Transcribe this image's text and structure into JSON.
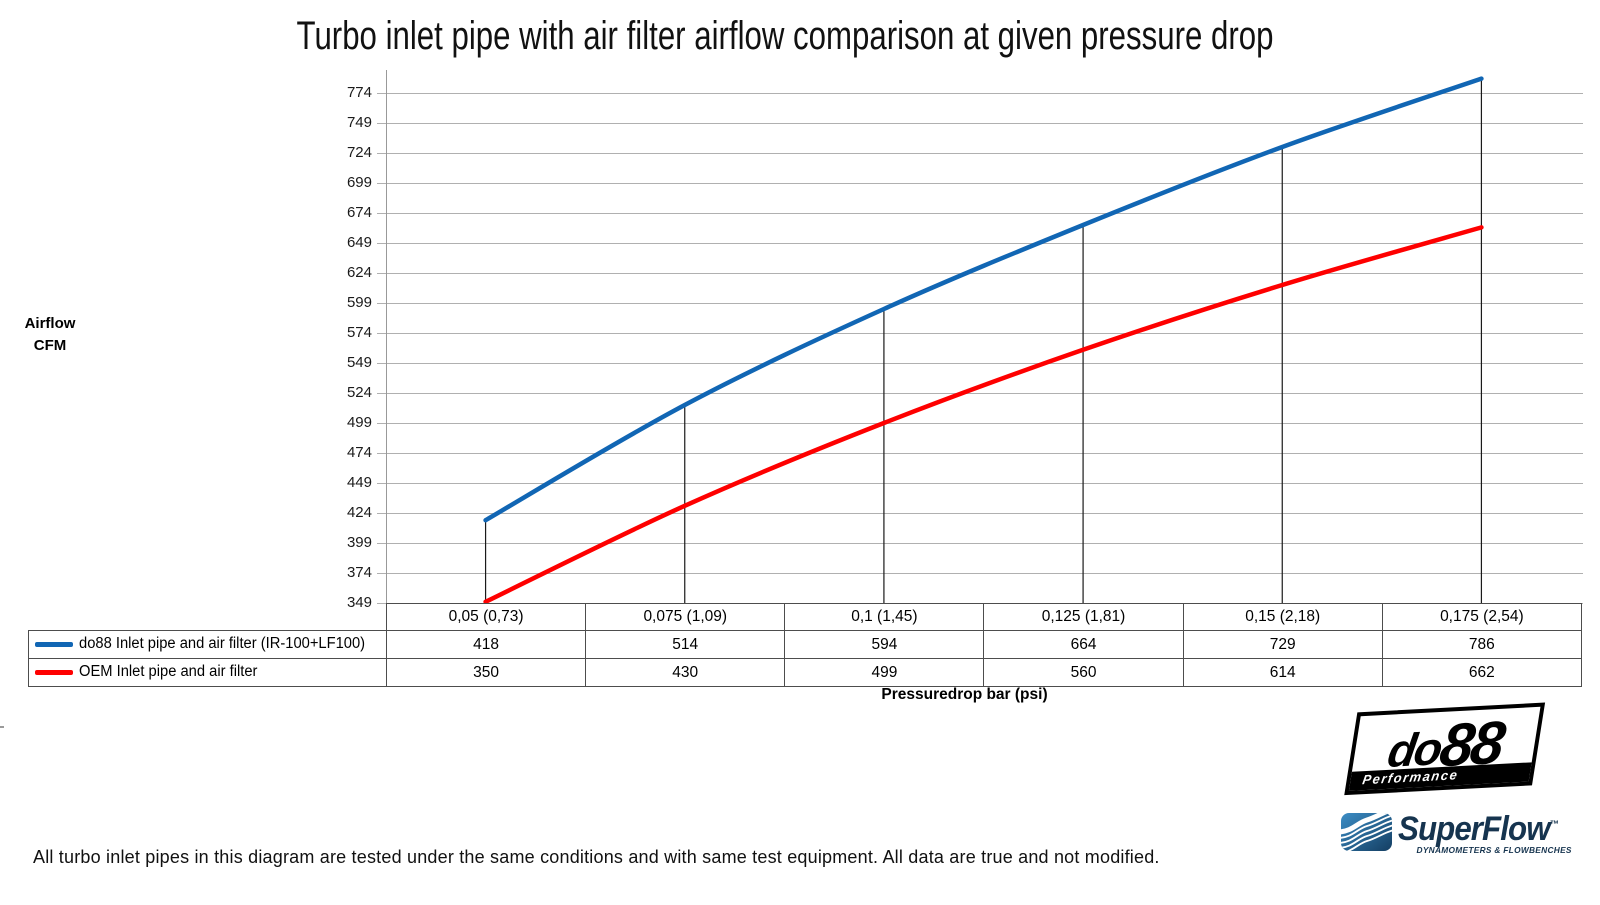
{
  "title": "Turbo inlet pipe with air filter airflow comparison at given pressure drop",
  "y_axis": {
    "title_line1": "Airflow",
    "title_line2": "CFM",
    "ticks_top_down": [
      774,
      749,
      724,
      699,
      674,
      649,
      624,
      599,
      574,
      549,
      524,
      499,
      474,
      449,
      424,
      399,
      374,
      349
    ]
  },
  "x_axis": {
    "title": "Pressuredrop bar (psi)"
  },
  "chart_data": {
    "type": "line",
    "title": "Turbo inlet pipe with air filter airflow comparison at given pressure drop",
    "xlabel": "Pressuredrop bar (psi)",
    "ylabel": "Airflow CFM",
    "categories": [
      "0,05 (0,73)",
      "0,075 (1,09)",
      "0,1 (1,45)",
      "0,125 (1,81)",
      "0,15 (2,18)",
      "0,175 (2,54)"
    ],
    "series": [
      {
        "name": "do88 Inlet pipe and air filter (IR-100+LF100)",
        "color": "#1166B4",
        "values": [
          418,
          514,
          594,
          664,
          729,
          786
        ]
      },
      {
        "name": "OEM Inlet pipe and air filter",
        "color": "#FE0000",
        "values": [
          350,
          430,
          499,
          560,
          614,
          662
        ]
      }
    ],
    "ylim": [
      349,
      774
    ],
    "ytick_step": 25,
    "grid": true,
    "drop_lines_at_points": true,
    "legend_position": "table-left"
  },
  "footnote": "All turbo inlet pipes in this diagram are tested under the same conditions and with same test equipment. All data are true and not modified.",
  "logos": {
    "do88": {
      "text_do": "do",
      "text_88": "88",
      "tagline": "Performance"
    },
    "superflow": {
      "text": "SuperFlow",
      "tm": "™",
      "tagline": "DYNAMOMETERS & FLOWBENCHES"
    }
  },
  "colors": {
    "series_blue": "#1166B4",
    "series_red": "#FE0000",
    "gridline": "#B0B0B0",
    "axis": "#999999",
    "drop_line": "#1a1a1a",
    "table_border": "#4d4d4d",
    "superflow_navy": "#16344F",
    "superflow_icon_light": "#3C8DC5",
    "superflow_icon_dark": "#143E62"
  }
}
